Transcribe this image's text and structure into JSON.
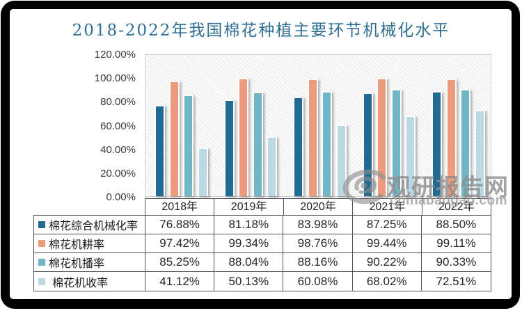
{
  "title": "2018-2022年我国棉花种植主要环节机械化水平",
  "colors": {
    "title_text": "#2E6F91",
    "series": [
      "#1F6B93",
      "#EC9B7D",
      "#6FB7C7",
      "#BAD9E5"
    ],
    "table_border": "#4f4f4f",
    "watermark_gray": "#8D8D8D"
  },
  "watermark": {
    "brand": "观研报告网",
    "domain": "chinabaogao.com",
    "logo": "swirl-eye-logo"
  },
  "chart_data": {
    "type": "bar",
    "title": "2018-2022年我国棉花种植主要环节机械化水平",
    "categories": [
      "2018年",
      "2019年",
      "2020年",
      "2021年",
      "2022年"
    ],
    "series": [
      {
        "name": "棉花综合机械化率",
        "color": "#1F6B93",
        "values": [
          76.88,
          81.18,
          83.98,
          87.25,
          88.5
        ]
      },
      {
        "name": "棉花机耕率",
        "color": "#EC9B7D",
        "values": [
          97.42,
          99.34,
          98.76,
          99.44,
          99.11
        ]
      },
      {
        "name": "棉花机播率",
        "color": "#6FB7C7",
        "values": [
          85.25,
          88.04,
          88.16,
          90.22,
          90.33
        ]
      },
      {
        "name": "棉花机收率",
        "color": "#BAD9E5",
        "values": [
          41.12,
          50.13,
          60.08,
          68.02,
          72.51
        ]
      }
    ],
    "ylim": [
      0,
      120
    ],
    "ytick_step": 20,
    "yticks": [
      "0.00%",
      "20.00%",
      "40.00%",
      "60.00%",
      "80.00%",
      "100.00%",
      "120.00%"
    ],
    "grid": false,
    "legend_position": "data-table-left-column",
    "value_suffix": "%",
    "data_table_shown": true
  }
}
